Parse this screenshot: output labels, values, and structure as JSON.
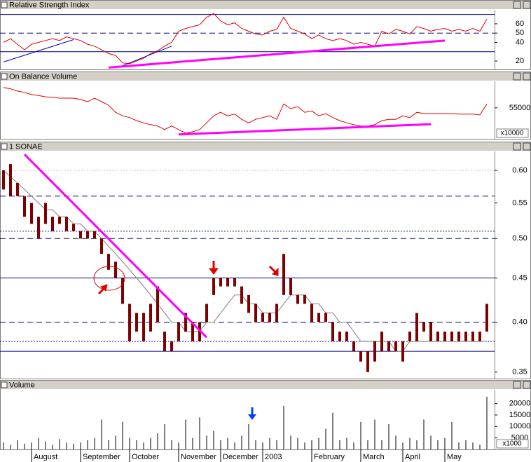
{
  "chart_data": [
    {
      "type": "line",
      "title": "Relative Strength Index",
      "color": "#e00000",
      "values": [
        40,
        44,
        38,
        32,
        38,
        40,
        42,
        44,
        42,
        46,
        44,
        42,
        38,
        36,
        32,
        28,
        26,
        18,
        17,
        20,
        23,
        28,
        31,
        36,
        40,
        52,
        55,
        57,
        59,
        67,
        71,
        63,
        59,
        61,
        55,
        52,
        49,
        48,
        52,
        54,
        67,
        55,
        52,
        49,
        44,
        48,
        44,
        42,
        44,
        42,
        38,
        40,
        38,
        36,
        52,
        49,
        54,
        52,
        49,
        57,
        55,
        52,
        54,
        55,
        52,
        54,
        52,
        55,
        52,
        65
      ],
      "ylim": [
        11,
        75
      ],
      "yticks": [
        20,
        40,
        50,
        60
      ],
      "reference_lines": [
        {
          "value": 70,
          "style": "solid",
          "color": "#000080"
        },
        {
          "value": 50,
          "style": "dashed",
          "color": "#000080"
        },
        {
          "value": 30,
          "style": "solid",
          "color": "#000080"
        }
      ],
      "trendlines": [
        {
          "start": [
            0,
            19
          ],
          "end": [
            10,
            43
          ],
          "color": "#0000c0"
        },
        {
          "start": [
            17,
            15
          ],
          "end": [
            24,
            36
          ],
          "color": "#0000c0"
        },
        {
          "start": [
            15,
            13
          ],
          "end": [
            63,
            42
          ],
          "color": "#ff00ff"
        }
      ]
    },
    {
      "type": "line",
      "title": "On Balance Volume",
      "color": "#e00000",
      "values": [
        59600,
        59300,
        58800,
        58500,
        58000,
        57800,
        57500,
        57400,
        57200,
        57200,
        57200,
        56900,
        56400,
        57200,
        56400,
        55600,
        54000,
        53200,
        52800,
        52100,
        51600,
        51200,
        50900,
        50100,
        50900,
        50100,
        49300,
        49600,
        50100,
        51600,
        53200,
        54000,
        53200,
        53600,
        52400,
        51600,
        52400,
        52800,
        53200,
        52400,
        55900,
        54800,
        55300,
        54000,
        54300,
        53200,
        53700,
        52800,
        52100,
        51600,
        51200,
        50900,
        50900,
        51200,
        52100,
        52400,
        52400,
        53200,
        52800,
        54000,
        53700,
        53700,
        53700,
        53700,
        53700,
        53600,
        53600,
        53600,
        53400,
        55900
      ],
      "ylim": [
        48000,
        61000
      ],
      "yticks": [
        55000
      ],
      "unit_label": "x10000",
      "trendlines": [
        {
          "start": [
            25,
            49000
          ],
          "end": [
            61,
            51300
          ],
          "color": "#ff00ff"
        }
      ]
    },
    {
      "type": "range_bar",
      "title": "1 SONAE",
      "color": "#800000",
      "log_scale": true,
      "high": [
        0.6,
        0.61,
        0.58,
        0.56,
        0.55,
        0.53,
        0.55,
        0.53,
        0.53,
        0.53,
        0.52,
        0.51,
        0.51,
        0.51,
        0.5,
        0.48,
        0.47,
        0.45,
        0.42,
        0.41,
        0.41,
        0.42,
        0.44,
        0.39,
        0.38,
        0.4,
        0.41,
        0.4,
        0.4,
        0.42,
        0.45,
        0.45,
        0.45,
        0.45,
        0.44,
        0.43,
        0.42,
        0.41,
        0.41,
        0.42,
        0.48,
        0.45,
        0.43,
        0.43,
        0.42,
        0.41,
        0.41,
        0.4,
        0.39,
        0.39,
        0.38,
        0.37,
        0.37,
        0.38,
        0.39,
        0.38,
        0.38,
        0.38,
        0.39,
        0.41,
        0.4,
        0.4,
        0.39,
        0.39,
        0.39,
        0.39,
        0.39,
        0.39,
        0.39,
        0.42
      ],
      "low": [
        0.57,
        0.56,
        0.56,
        0.53,
        0.52,
        0.5,
        0.52,
        0.51,
        0.52,
        0.51,
        0.51,
        0.5,
        0.5,
        0.5,
        0.48,
        0.46,
        0.45,
        0.42,
        0.38,
        0.39,
        0.38,
        0.39,
        0.4,
        0.37,
        0.37,
        0.38,
        0.39,
        0.38,
        0.38,
        0.4,
        0.43,
        0.44,
        0.44,
        0.44,
        0.42,
        0.41,
        0.4,
        0.4,
        0.4,
        0.4,
        0.43,
        0.43,
        0.42,
        0.42,
        0.4,
        0.4,
        0.4,
        0.38,
        0.38,
        0.38,
        0.37,
        0.36,
        0.35,
        0.36,
        0.37,
        0.37,
        0.37,
        0.36,
        0.38,
        0.38,
        0.39,
        0.38,
        0.38,
        0.38,
        0.38,
        0.38,
        0.38,
        0.38,
        0.38,
        0.39
      ],
      "moving_average": [
        0.6,
        0.59,
        0.58,
        0.57,
        0.56,
        0.55,
        0.54,
        0.54,
        0.53,
        0.53,
        0.52,
        0.52,
        0.51,
        0.51,
        0.5,
        0.49,
        0.48,
        0.47,
        0.46,
        0.45,
        0.44,
        0.43,
        0.42,
        0.41,
        0.4,
        0.4,
        0.39,
        0.39,
        0.39,
        0.4,
        0.4,
        0.41,
        0.42,
        0.43,
        0.43,
        0.42,
        0.42,
        0.41,
        0.41,
        0.41,
        0.42,
        0.43,
        0.43,
        0.43,
        0.42,
        0.42,
        0.41,
        0.41,
        0.4,
        0.4,
        0.39,
        0.38,
        0.38,
        0.38,
        0.38,
        0.38,
        0.37,
        0.37,
        0.38,
        0.38,
        0.38,
        0.38,
        0.38,
        0.38,
        0.38,
        0.38,
        0.38,
        0.38,
        0.38,
        0.38
      ],
      "moving_average_color": "#808080",
      "ylim": [
        0.344,
        0.631
      ],
      "yticks": [
        {
          "value": 0.35,
          "label": "0.35"
        },
        {
          "value": 0.4,
          "label": "0.40"
        },
        {
          "value": 0.45,
          "label": "0.45"
        },
        {
          "value": 0.5,
          "label": "0.50"
        },
        {
          "value": 0.55,
          "label": "0.55"
        },
        {
          "value": 0.6,
          "label": "0.60"
        }
      ],
      "reference_lines": [
        {
          "value": 0.6,
          "style": "dotted",
          "color": "#c0c0c0"
        },
        {
          "value": 0.56,
          "style": "dashed",
          "color": "#000080"
        },
        {
          "value": 0.51,
          "style": "dotted",
          "color": "#000080"
        },
        {
          "value": 0.5,
          "style": "dashed",
          "color": "#000080"
        },
        {
          "value": 0.45,
          "style": "solid",
          "color": "#000080"
        },
        {
          "value": 0.4,
          "style": "dashed",
          "color": "#000080"
        },
        {
          "value": 0.38,
          "style": "dotted",
          "color": "#000080"
        },
        {
          "value": 0.37,
          "style": "solid",
          "color": "#000080"
        }
      ],
      "trendlines": [
        {
          "start": [
            3,
            0.626
          ],
          "end": [
            29,
            0.384
          ],
          "color": "#ff00ff"
        }
      ]
    },
    {
      "type": "bar",
      "title": "Volume",
      "color": "#808080",
      "categories": [
        null,
        null,
        null,
        null,
        "August",
        null,
        null,
        null,
        null,
        null,
        null,
        "September",
        null,
        null,
        null,
        null,
        null,
        null,
        "October",
        null,
        null,
        null,
        null,
        null,
        null,
        "November",
        null,
        null,
        null,
        null,
        null,
        "December",
        null,
        null,
        null,
        null,
        null,
        "2003",
        null,
        null,
        null,
        null,
        null,
        null,
        "February",
        null,
        null,
        null,
        null,
        null,
        null,
        "March",
        null,
        null,
        null,
        null,
        null,
        "April",
        null,
        null,
        null,
        null,
        null,
        "May",
        null,
        null,
        null,
        null,
        null,
        null
      ],
      "values": [
        3000,
        2000,
        4000,
        2500,
        3000,
        5000,
        3500,
        2000,
        4500,
        3000,
        2500,
        3000,
        4000,
        5000,
        13000,
        4000,
        6000,
        12000,
        5000,
        4000,
        3000,
        5000,
        7000,
        11000,
        4000,
        3000,
        13000,
        5000,
        14000,
        6000,
        8000,
        4000,
        5000,
        3000,
        6000,
        11000,
        4000,
        3000,
        5000,
        4000,
        19000,
        6000,
        5000,
        3000,
        4000,
        5000,
        9000,
        16000,
        4000,
        5000,
        3000,
        12000,
        4000,
        13000,
        4000,
        11000,
        6000,
        3000,
        5000,
        4000,
        13000,
        6000,
        4000,
        5000,
        12000,
        3000,
        4000,
        3000,
        2000,
        23000
      ],
      "ylim": [
        0,
        26000
      ],
      "yticks": [
        5000,
        10000,
        15000,
        20000
      ],
      "unit_label": "x1000"
    }
  ]
}
